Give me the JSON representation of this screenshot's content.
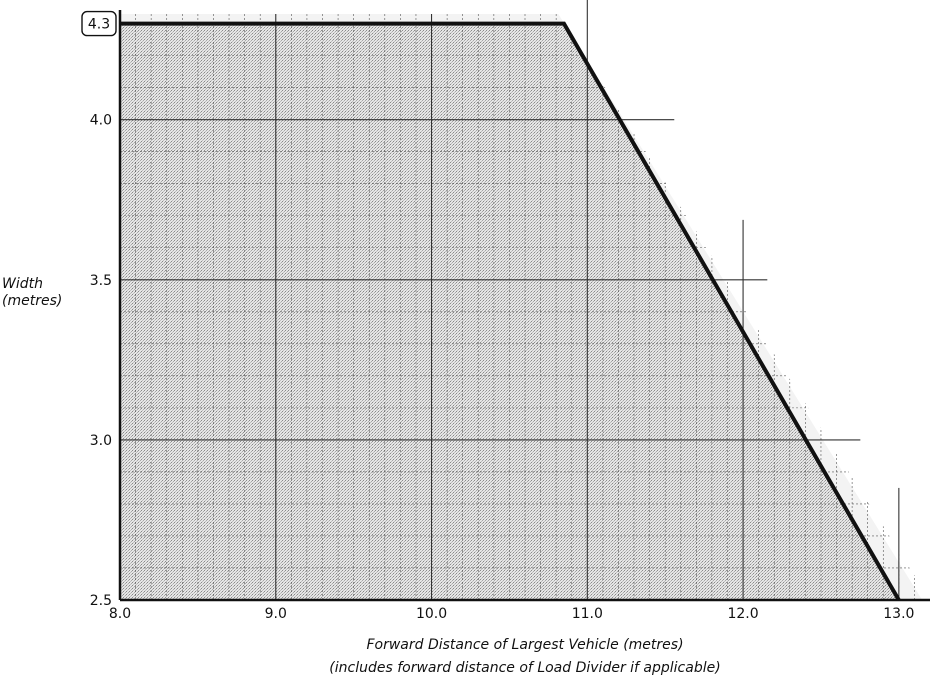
{
  "chart_data": {
    "type": "area",
    "title": "",
    "ylabel": [
      "Width",
      "(metres)"
    ],
    "xlabel": [
      "Forward Distance of Largest Vehicle (metres)",
      "(includes forward distance of Load Divider if applicable)"
    ],
    "xlim": [
      8.0,
      13.2
    ],
    "ylim": [
      2.5,
      4.33
    ],
    "x_ticks": [
      "8.0",
      "9.0",
      "10.0",
      "11.0",
      "12.0",
      "13.0"
    ],
    "y_ticks": [
      "2.5",
      "3.0",
      "3.5",
      "4.0"
    ],
    "boxed_y_label": "4.3",
    "grid": true,
    "minor_grid_step_x": 0.1,
    "minor_grid_step_y": 0.1,
    "series": [
      {
        "x": [
          8.0,
          10.85,
          13.0
        ],
        "y": [
          4.3,
          4.3,
          2.5
        ]
      }
    ],
    "shading": "region below limit line (stippled grey)",
    "colors": {
      "limit_line": "#111111",
      "fill": "#cfcfcf",
      "grid": "#444444",
      "background": "#ffffff"
    }
  }
}
